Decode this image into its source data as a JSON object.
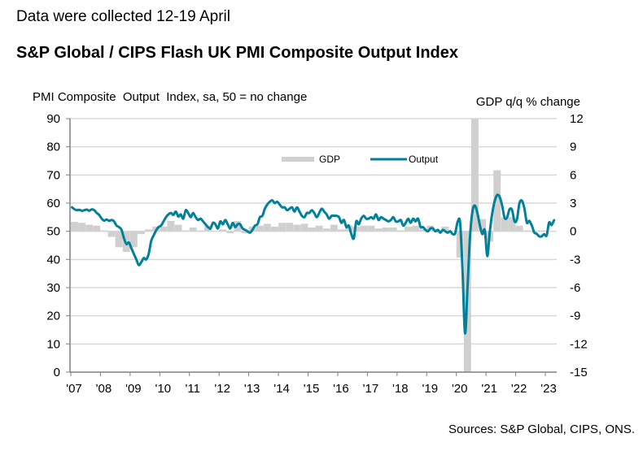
{
  "header": {
    "subtitle": "Data were collected 12-19 April",
    "title": "S&P Global / CIPS Flash UK PMI Composite Output Index"
  },
  "footer": {
    "source": "Sources: S&P Global, CIPS, ONS."
  },
  "chart_data": {
    "type": "line",
    "title": "S&P Global / CIPS Flash UK PMI Composite Output Index",
    "ylabel_left": "PMI Composite  Output  Index, sa, 50 = no change",
    "ylabel_right": "GDP q/q % change",
    "xlabel": "",
    "ylim_left": [
      0,
      90
    ],
    "ylim_right": [
      -15,
      12
    ],
    "yticks_left": [
      0,
      10,
      20,
      30,
      40,
      50,
      60,
      70,
      80,
      90
    ],
    "yticks_right": [
      -15,
      -12,
      -9,
      -6,
      -3,
      0,
      3,
      6,
      9,
      12
    ],
    "xticks": [
      "'07",
      "'08",
      "'09",
      "'10",
      "'11",
      "'12",
      "'13",
      "'14",
      "'15",
      "'16",
      "'17",
      "'18",
      "'19",
      "'20",
      "'21",
      "'22",
      "'23"
    ],
    "x_start_year": 2007,
    "grid": true,
    "legend_position": "top-center",
    "colors": {
      "output": "#00819a",
      "gdp": "#d0d0d0",
      "grid": "#d9d9d9",
      "axis": "#808080"
    },
    "series": [
      {
        "name": "Output",
        "type": "line",
        "axis": "left",
        "frequency": "monthly",
        "start": "2007-01",
        "values": [
          58.5,
          57.8,
          57.5,
          57.6,
          57.3,
          57.5,
          57.7,
          57.3,
          57.8,
          57.5,
          56.5,
          55.8,
          54.5,
          53.8,
          54.2,
          53.7,
          54,
          53.5,
          52,
          51.5,
          50.5,
          47.5,
          45.5,
          46,
          44,
          42,
          40,
          38,
          39,
          40.5,
          40,
          42,
          46.5,
          48.5,
          50.3,
          51.5,
          52,
          53.5,
          55,
          56,
          56.5,
          55.8,
          57,
          55.2,
          56,
          54.5,
          57.5,
          56.5,
          55,
          56.5,
          55,
          54,
          54.5,
          53.5,
          52.5,
          51.5,
          51,
          53,
          52.5,
          51,
          53.5,
          52.5,
          54,
          52.5,
          51,
          53,
          51.5,
          52.5,
          52.5,
          51,
          50.5,
          50,
          49.5,
          50.5,
          52,
          52.5,
          55,
          55.5,
          58,
          59.5,
          60.5,
          61,
          60,
          60.5,
          59.5,
          58.5,
          58.5,
          57.5,
          58,
          58.5,
          57,
          58.5,
          57,
          55.5,
          55,
          56.5,
          56.5,
          57.5,
          56.5,
          55,
          56.5,
          58,
          57,
          56,
          54.5,
          55.5,
          55.5,
          55.5,
          55,
          53,
          54,
          51.5,
          52,
          49,
          47.5,
          53.5,
          52.5,
          54.5,
          55.5,
          54.5,
          54.5,
          55,
          54.5,
          56,
          54,
          55,
          54.5,
          54,
          53.5,
          54,
          55,
          53.5,
          53.5,
          54,
          52,
          53,
          54.5,
          53,
          54.5,
          53.5,
          54.5,
          51.5,
          51.5,
          50.5,
          50,
          51,
          51,
          50,
          50.5,
          49.5,
          50.5,
          50,
          49.5,
          50,
          49,
          49.3,
          53.3,
          53,
          36,
          13.8,
          30,
          47.7,
          57.1,
          59.1,
          56.5,
          52.1,
          49,
          50.4,
          41.2,
          49.6,
          56.4,
          60.7,
          62.9,
          62.2,
          59.2,
          54.8,
          54.9,
          57.8,
          57.6,
          53.6,
          54.2,
          59.9,
          60.9,
          58.2,
          53.1,
          53.7,
          52.1,
          49.6,
          49.1,
          48.2,
          48.2,
          49,
          48.5,
          53.1,
          52.2,
          53.9
        ]
      },
      {
        "name": "GDP",
        "type": "bar",
        "axis": "right",
        "frequency": "quarterly",
        "start": "2007-Q1",
        "values": [
          1.0,
          0.9,
          0.7,
          0.6,
          0.1,
          -0.6,
          -1.7,
          -2.2,
          -1.7,
          -0.3,
          0.2,
          0.5,
          0.5,
          1.1,
          0.7,
          0.1,
          0.4,
          0.1,
          0.6,
          0.0,
          0.2,
          -0.2,
          1.1,
          -0.2,
          0.5,
          0.6,
          0.8,
          0.5,
          0.9,
          0.9,
          0.7,
          0.8,
          0.4,
          0.6,
          0.3,
          0.7,
          0.2,
          0.6,
          0.5,
          0.6,
          0.6,
          0.3,
          0.4,
          0.4,
          0.1,
          0.5,
          0.6,
          0.2,
          0.6,
          -0.1,
          0.5,
          0.0,
          -2.8,
          -20.0,
          16.0,
          1.3,
          -1.1,
          6.5,
          1.5,
          1.5,
          0.6,
          0.1,
          -0.1,
          0.1
        ]
      }
    ],
    "legend": [
      {
        "label": "GDP",
        "marker": "bar"
      },
      {
        "label": "Output",
        "marker": "line"
      }
    ]
  }
}
